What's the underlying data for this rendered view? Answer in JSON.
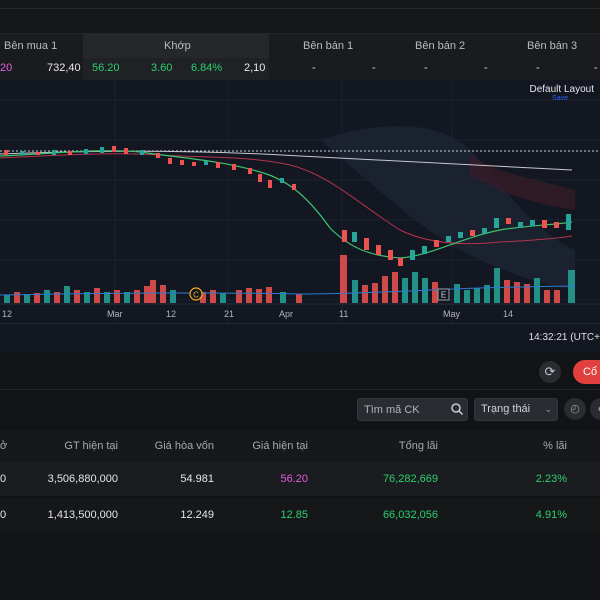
{
  "orderbook": {
    "headers": {
      "ben_mua_1": "Bên mua 1",
      "khop": "Khớp",
      "ben_ban_1": "Bên bán 1",
      "ben_ban_2": "Bên bán 2",
      "ben_ban_3": "Bên bán 3"
    },
    "values": {
      "buy_price_fragment": "20",
      "buy_volume": "732,40",
      "match_price": "56.20",
      "match_change": "3.60",
      "match_percent": "6.84%",
      "match_volume": "2,10",
      "dashes": [
        "-",
        "-",
        "-",
        "-",
        "-",
        "-"
      ]
    }
  },
  "chart": {
    "layout_title": "Default Layout",
    "layout_save": "Save",
    "x_labels": [
      "12",
      "Mar",
      "12",
      "21",
      "Apr",
      "11",
      "May",
      "14"
    ],
    "markers": [
      "C",
      "E"
    ],
    "clock": "14:32:21 (UTC+"
  },
  "actions": {
    "refresh_icon": "refresh-icon",
    "primary_label": "Cổ phiếu"
  },
  "filters": {
    "search_placeholder": "Tìm mã CK",
    "status_label": "Trạng thái"
  },
  "table": {
    "headers": {
      "col0_fragment": "ở",
      "gt_hien_tai": "GT hiện tại",
      "gia_hoa_von": "Giá hòa vốn",
      "gia_hien_tai": "Giá hiện tại",
      "tong_lai": "Tổng lãi",
      "pct_lai": "% lãi"
    },
    "rows": [
      {
        "col0": "0",
        "gt": "3,506,880,000",
        "hoa_von": "54.981",
        "hien_tai": "56.20",
        "tong_lai": "76,282,669",
        "pct": "2.23%"
      },
      {
        "col0": "0",
        "gt": "1,413,500,000",
        "hoa_von": "12.249",
        "hien_tai": "12.85",
        "tong_lai": "66,032,056",
        "pct": "4.91%"
      }
    ]
  },
  "colors": {
    "up": "#26a69a",
    "down": "#ef5350",
    "accent_red": "#e23f3f",
    "profit_green": "#2bd06f",
    "ceiling_magenta": "#e25ce0"
  }
}
